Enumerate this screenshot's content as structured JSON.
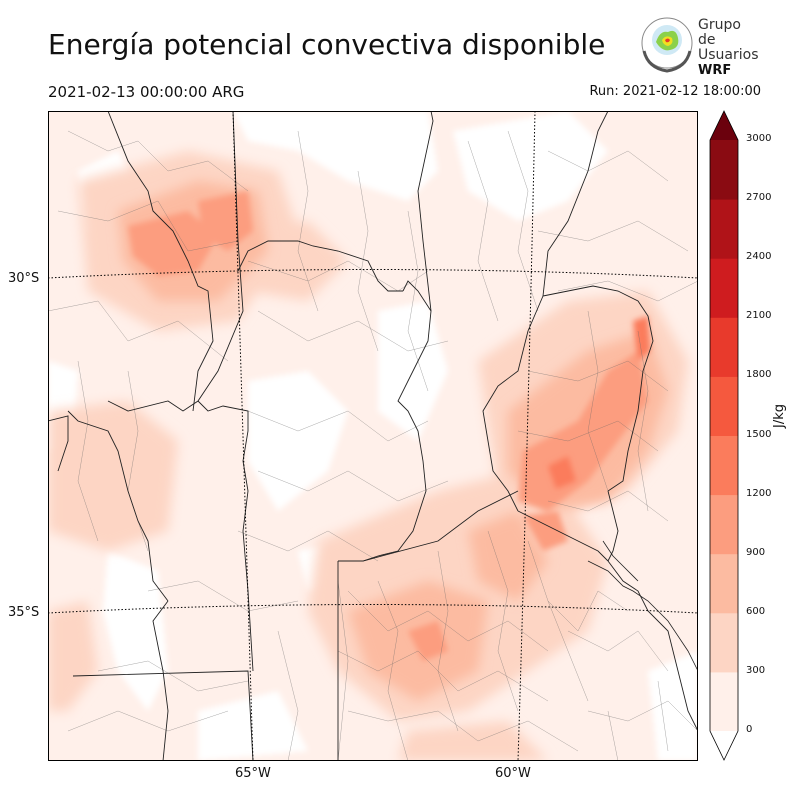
{
  "header": {
    "title": "Energía potencial convectiva disponible",
    "valid_time": "2021-02-13 00:00:00 ARG",
    "run_time": "Run: 2021-02-12 18:00:00"
  },
  "logo": {
    "line1": "Grupo de",
    "line2": "Usuarios",
    "line3": "WRF"
  },
  "map": {
    "latitude_labels": [
      "30°S",
      "35°S"
    ],
    "longitude_labels": [
      "65°W",
      "60°W"
    ],
    "field": "CAPE",
    "graticule_style": "dotted"
  },
  "colorbar": {
    "unit": "J/kg",
    "ticks": [
      "0",
      "300",
      "600",
      "900",
      "1200",
      "1500",
      "1800",
      "2100",
      "2400",
      "2700",
      "3000"
    ],
    "colors": [
      "#fff0ea",
      "#fdd5c4",
      "#fcbba1",
      "#fc9d7f",
      "#fb7c5c",
      "#f5593e",
      "#e83a2c",
      "#cf1c1f",
      "#b01318",
      "#8a0b12",
      "#6b010d"
    ],
    "extend": "both"
  }
}
